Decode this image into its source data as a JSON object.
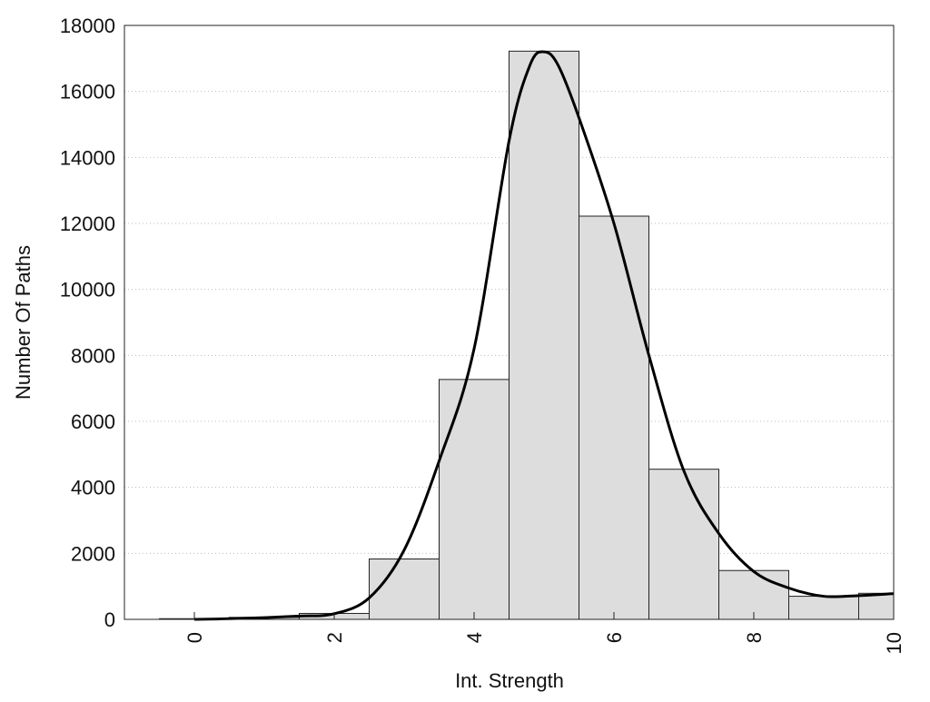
{
  "chart_data": {
    "type": "bar",
    "title": "",
    "xlabel": "Int. Strength",
    "ylabel": "Number Of Paths",
    "xlim": [
      -1,
      10
    ],
    "ylim": [
      0,
      18000
    ],
    "x_ticks": [
      0,
      2,
      4,
      6,
      8,
      10
    ],
    "y_ticks": [
      0,
      2000,
      4000,
      6000,
      8000,
      10000,
      12000,
      14000,
      16000,
      18000
    ],
    "grid": "horizontal dotted",
    "bar_width": 1,
    "bars": {
      "x": [
        0,
        1,
        2,
        3,
        4,
        5,
        6,
        7,
        8,
        9,
        10
      ],
      "values": [
        20,
        60,
        180,
        1830,
        7270,
        17220,
        12220,
        4550,
        1480,
        700,
        790
      ]
    },
    "curve": {
      "x": [
        0,
        0.5,
        1,
        1.5,
        2,
        2.5,
        3,
        3.5,
        4,
        4.5,
        4.8,
        5,
        5.2,
        5.5,
        6,
        6.5,
        7,
        7.5,
        8,
        8.5,
        9,
        9.5,
        10
      ],
      "y": [
        0,
        20,
        50,
        100,
        170,
        650,
        2100,
        4800,
        8200,
        14500,
        16800,
        17200,
        16800,
        15200,
        12000,
        8000,
        4500,
        2600,
        1450,
        950,
        700,
        720,
        780
      ]
    },
    "colors": {
      "bar_fill": "#dddddd",
      "bar_stroke": "#222222",
      "curve": "#000000",
      "grid": "#bbbbbb"
    }
  }
}
